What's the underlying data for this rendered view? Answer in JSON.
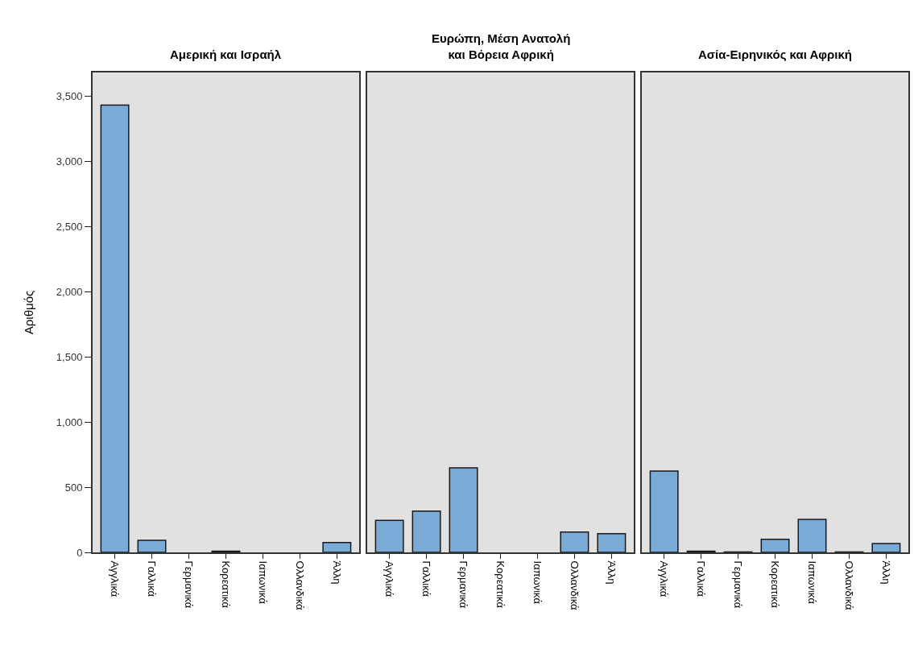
{
  "chart_data": [
    {
      "type": "bar",
      "title": "Αμερική και Ισραήλ",
      "ylabel": "Αριθμός",
      "categories": [
        "Αγγλικά",
        "Γαλλικά",
        "Γερμανικά",
        "Κορεατικά",
        "Ιαπωνικά",
        "Ολλανδικά",
        "Άλλη"
      ],
      "values": [
        3430,
        93,
        null,
        10,
        null,
        null,
        76
      ],
      "color": "#7aaad6",
      "ylim": [
        0,
        3680
      ],
      "yticks": [
        {
          "value": 0,
          "label": "0"
        },
        {
          "value": 500,
          "label": "500"
        },
        {
          "value": 1000,
          "label": "1,000"
        },
        {
          "value": 1500,
          "label": "1,500"
        },
        {
          "value": 2000,
          "label": "2,000"
        },
        {
          "value": 2500,
          "label": "2,500"
        },
        {
          "value": 3000,
          "label": "3,000"
        },
        {
          "value": 3500,
          "label": "3,500"
        }
      ],
      "grid": false
    },
    {
      "type": "bar",
      "title": "Ευρώπη, Μέση Ανατολή\nκαι Βόρεια Αφρική",
      "categories": [
        "Αγγλικά",
        "Γαλλικά",
        "Γερμανικά",
        "Κορεατικά",
        "Ιαπωνικά",
        "Ολλανδικά",
        "Άλλη"
      ],
      "values": [
        245,
        317,
        649,
        null,
        null,
        156,
        144
      ],
      "color": "#7aaad6",
      "ylim": [
        0,
        3680
      ],
      "tick_labels": "x",
      "grid": false
    },
    {
      "type": "bar",
      "title": "Ασία-Ειρηνικός και Αφρική",
      "categories": [
        "Αγγλικά",
        "Γαλλικά",
        "Γερμανικά",
        "Κορεατικά",
        "Ιαπωνικά",
        "Ολλανδικά",
        "Άλλη"
      ],
      "values": [
        624,
        10,
        3,
        101,
        253,
        3,
        68
      ],
      "color": "#7aaad6",
      "ylim": [
        0,
        3680
      ],
      "tick_labels": "x",
      "grid": false
    }
  ]
}
